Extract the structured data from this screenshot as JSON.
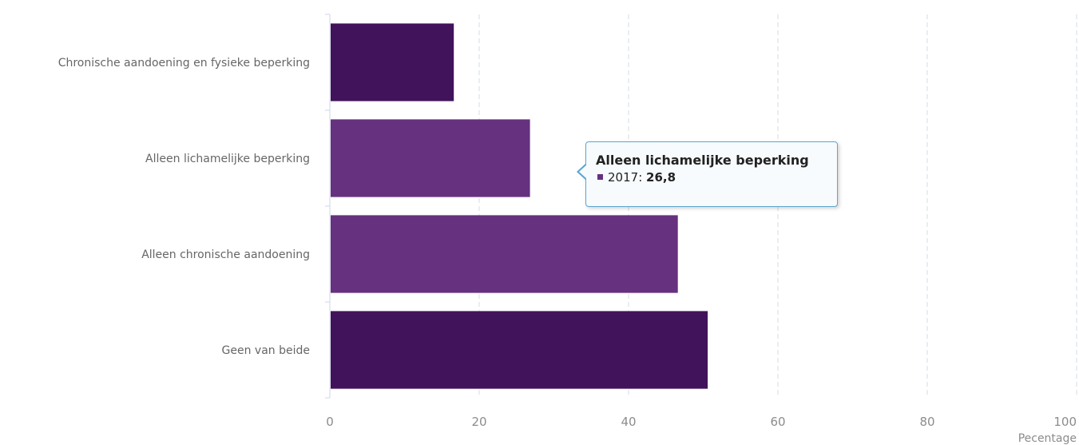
{
  "colors": {
    "bar_dark": "#41135b",
    "bar_light": "#66317f",
    "grid": "#d3dce6",
    "axis": "#ccd6eb"
  },
  "chart_data": {
    "type": "bar",
    "orientation": "horizontal",
    "categories": [
      "Chronische aandoening en fysieke beperking",
      "Alleen lichamelijke beperking",
      "Alleen chronische aandoening",
      "Geen van beide"
    ],
    "series": [
      {
        "name": "2017",
        "values": [
          16.6,
          26.8,
          46.6,
          50.6
        ]
      }
    ],
    "bar_colors": [
      "#41135b",
      "#66317f",
      "#66317f",
      "#41135b"
    ],
    "xlabel": "Pecentage",
    "ylabel": "",
    "xlim": [
      0,
      100
    ],
    "x_ticks": [
      0,
      20,
      40,
      60,
      80,
      100
    ],
    "grid": "vertical dashed",
    "tooltip": {
      "title": "Alleen lichamelijke beperking",
      "series_label": "2017",
      "value_text": "26,8"
    }
  }
}
